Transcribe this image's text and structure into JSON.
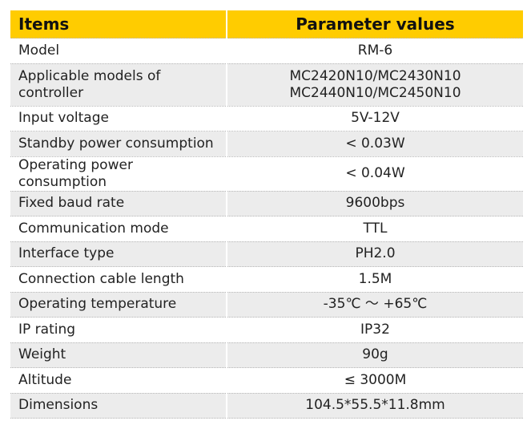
{
  "header": {
    "items_label": "Items",
    "values_label": "Parameter values"
  },
  "rows": [
    {
      "item": "Model",
      "value": "RM-6"
    },
    {
      "item": "Applicable models of controller",
      "value": "MC2420N10/MC2430N10",
      "value2": "MC2440N10/MC2450N10"
    },
    {
      "item": "Input voltage",
      "value": "5V-12V"
    },
    {
      "item": "Standby power consumption",
      "value": "< 0.03W"
    },
    {
      "item": "Operating power consumption",
      "value": "< 0.04W"
    },
    {
      "item": "Fixed baud rate",
      "value": "9600bps"
    },
    {
      "item": "Communication mode",
      "value": "TTL"
    },
    {
      "item": "Interface type",
      "value": "PH2.0"
    },
    {
      "item": "Connection cable length",
      "value": "1.5M"
    },
    {
      "item": "Operating temperature",
      "value": "-35℃ ～ +65℃"
    },
    {
      "item": "IP rating",
      "value": "IP32"
    },
    {
      "item": "Weight",
      "value": "90g"
    },
    {
      "item": "Altitude",
      "value": "≤ 3000M"
    },
    {
      "item": "Dimensions",
      "value": "104.5*55.5*11.8mm"
    }
  ],
  "colors": {
    "header_bg": "#FFCC00",
    "stripe_bg": "#ECECEC"
  }
}
